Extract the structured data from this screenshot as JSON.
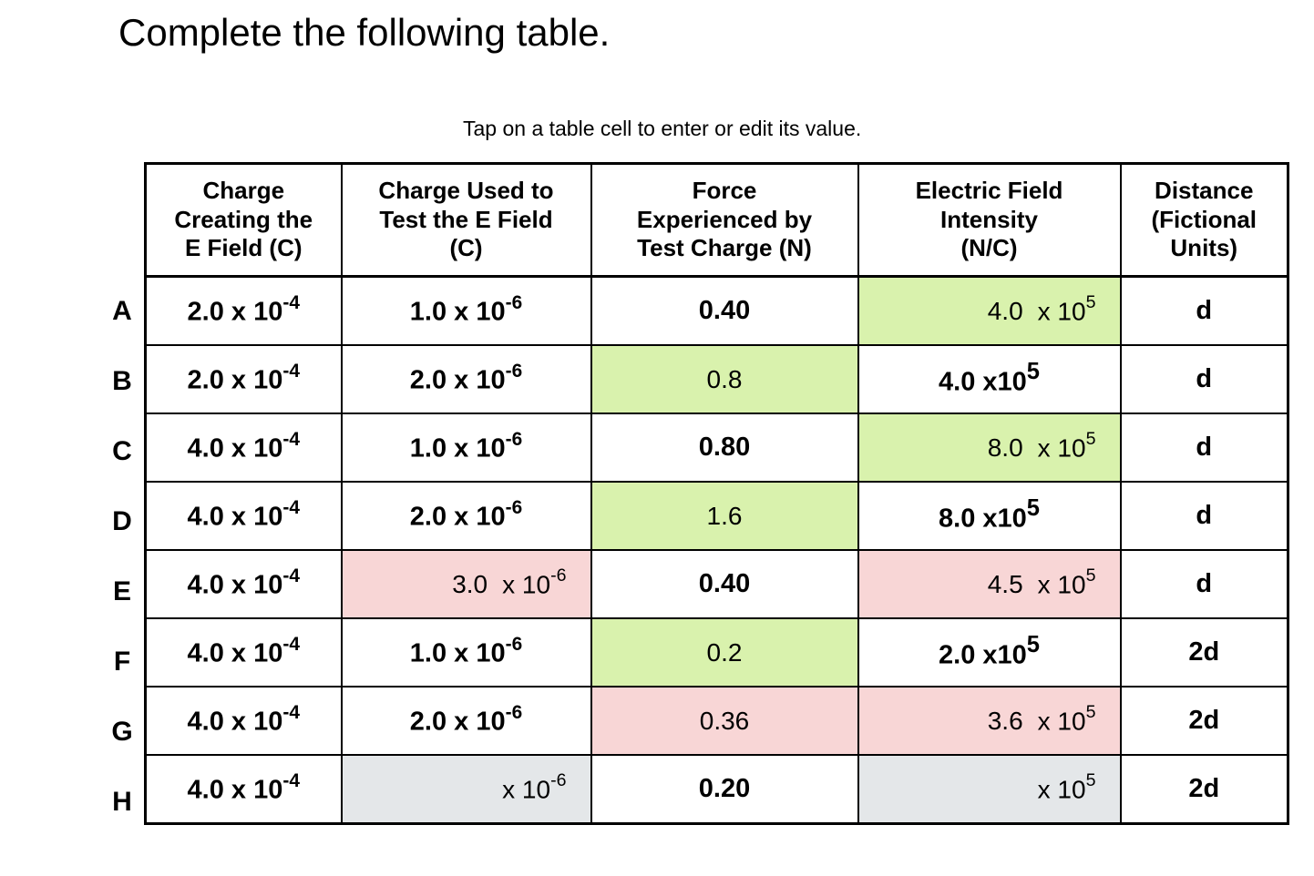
{
  "page": {
    "title": "Complete the following table.",
    "instruction": "Tap on a table cell to enter or edit its value."
  },
  "colors": {
    "correct_bg": "#d9f2ad",
    "incorrect_bg": "#f8d6d6",
    "empty_bg": "#e4e7e9",
    "border": "#000000"
  },
  "table": {
    "row_labels": [
      "A",
      "B",
      "C",
      "D",
      "E",
      "F",
      "G",
      "H"
    ],
    "headers": [
      "Charge\nCreating the\nE Field (C)",
      "Charge Used to\nTest the E Field\n(C)",
      "Force\nExperienced by\nTest Charge (N)",
      "Electric Field\nIntensity\n(N/C)",
      "Distance\n(Fictional\nUnits)"
    ],
    "rows": [
      {
        "label": "A",
        "q_source": {
          "m": "2.0 x 10",
          "e": "-4"
        },
        "q_test": {
          "m": "1.0 x 10",
          "e": "-6"
        },
        "force": {
          "v": "0.40"
        },
        "efield": {
          "state": "correct",
          "v": "4.0",
          "sm": "x 10",
          "se": "5"
        },
        "dist": "d"
      },
      {
        "label": "B",
        "q_source": {
          "m": "2.0 x 10",
          "e": "-4"
        },
        "q_test": {
          "m": "2.0 x 10",
          "e": "-6"
        },
        "force": {
          "state": "correct",
          "v": "0.8"
        },
        "efield": {
          "m": "4.0 x10",
          "e": "5"
        },
        "dist": "d"
      },
      {
        "label": "C",
        "q_source": {
          "m": "4.0 x 10",
          "e": "-4"
        },
        "q_test": {
          "m": "1.0 x 10",
          "e": "-6"
        },
        "force": {
          "v": "0.80"
        },
        "efield": {
          "state": "correct",
          "v": "8.0",
          "sm": "x 10",
          "se": "5"
        },
        "dist": "d"
      },
      {
        "label": "D",
        "q_source": {
          "m": "4.0 x 10",
          "e": "-4"
        },
        "q_test": {
          "m": "2.0 x 10",
          "e": "-6"
        },
        "force": {
          "state": "correct",
          "v": "1.6"
        },
        "efield": {
          "m": "8.0 x10",
          "e": "5"
        },
        "dist": "d"
      },
      {
        "label": "E",
        "q_source": {
          "m": "4.0 x 10",
          "e": "-4"
        },
        "q_test": {
          "state": "incorrect",
          "v": "3.0",
          "sm": "x 10",
          "se": "-6"
        },
        "force": {
          "v": "0.40"
        },
        "efield": {
          "state": "incorrect",
          "v": "4.5",
          "sm": "x 10",
          "se": "5"
        },
        "dist": "d"
      },
      {
        "label": "F",
        "q_source": {
          "m": "4.0 x 10",
          "e": "-4"
        },
        "q_test": {
          "m": "1.0 x 10",
          "e": "-6"
        },
        "force": {
          "state": "correct",
          "v": "0.2"
        },
        "efield": {
          "m": "2.0 x10",
          "e": "5"
        },
        "dist": "2d"
      },
      {
        "label": "G",
        "q_source": {
          "m": "4.0 x 10",
          "e": "-4"
        },
        "q_test": {
          "m": "2.0 x 10",
          "e": "-6"
        },
        "force": {
          "state": "incorrect",
          "v": "0.36"
        },
        "efield": {
          "state": "incorrect",
          "v": "3.6",
          "sm": "x 10",
          "se": "5"
        },
        "dist": "2d"
      },
      {
        "label": "H",
        "q_source": {
          "m": "4.0 x 10",
          "e": "-4"
        },
        "q_test": {
          "state": "empty",
          "v": "",
          "sm": "x 10",
          "se": "-6"
        },
        "force": {
          "v": "0.20"
        },
        "efield": {
          "state": "empty",
          "v": "",
          "sm": "x 10",
          "se": "5"
        },
        "dist": "2d"
      }
    ]
  }
}
